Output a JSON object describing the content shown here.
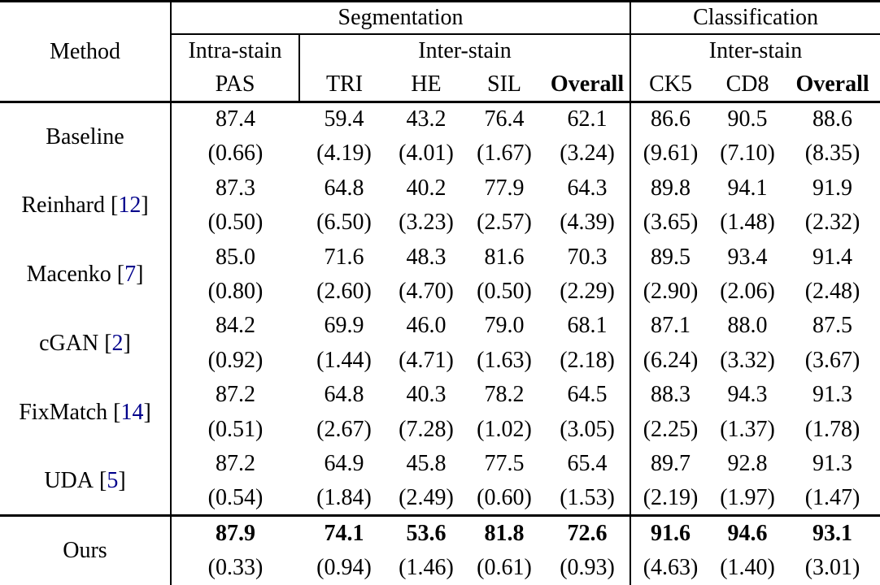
{
  "page": {
    "background": "#ffffff"
  },
  "colors": {
    "text": "#000000",
    "citation": "#00008B",
    "rule": "#000000"
  },
  "table": {
    "cite_open": "[",
    "cite_close": "]",
    "header": {
      "method_label": "Method",
      "seg_label": "Segmentation",
      "cls_label": "Classification",
      "intra_label": "Intra-stain",
      "inter_label": "Inter-stain",
      "columns": [
        "PAS",
        "TRI",
        "HE",
        "SIL",
        "Overall",
        "CK5",
        "CD8",
        "Overall"
      ]
    },
    "rows": [
      {
        "method": "Baseline",
        "ref": "",
        "bold": false,
        "values": [
          "87.4",
          "59.4",
          "43.2",
          "76.4",
          "62.1",
          "86.6",
          "90.5",
          "88.6"
        ],
        "stds": [
          "(0.66)",
          "(4.19)",
          "(4.01)",
          "(1.67)",
          "(3.24)",
          "(9.61)",
          "(7.10)",
          "(8.35)"
        ]
      },
      {
        "method": "Reinhard",
        "ref": "12",
        "bold": false,
        "values": [
          "87.3",
          "64.8",
          "40.2",
          "77.9",
          "64.3",
          "89.8",
          "94.1",
          "91.9"
        ],
        "stds": [
          "(0.50)",
          "(6.50)",
          "(3.23)",
          "(2.57)",
          "(4.39)",
          "(3.65)",
          "(1.48)",
          "(2.32)"
        ]
      },
      {
        "method": "Macenko",
        "ref": "7",
        "bold": false,
        "values": [
          "85.0",
          "71.6",
          "48.3",
          "81.6",
          "70.3",
          "89.5",
          "93.4",
          "91.4"
        ],
        "stds": [
          "(0.80)",
          "(2.60)",
          "(4.70)",
          "(0.50)",
          "(2.29)",
          "(2.90)",
          "(2.06)",
          "(2.48)"
        ]
      },
      {
        "method": "cGAN",
        "ref": "2",
        "bold": false,
        "values": [
          "84.2",
          "69.9",
          "46.0",
          "79.0",
          "68.1",
          "87.1",
          "88.0",
          "87.5"
        ],
        "stds": [
          "(0.92)",
          "(1.44)",
          "(4.71)",
          "(1.63)",
          "(2.18)",
          "(6.24)",
          "(3.32)",
          "(3.67)"
        ]
      },
      {
        "method": "FixMatch",
        "ref": "14",
        "bold": false,
        "values": [
          "87.2",
          "64.8",
          "40.3",
          "78.2",
          "64.5",
          "88.3",
          "94.3",
          "91.3"
        ],
        "stds": [
          "(0.51)",
          "(2.67)",
          "(7.28)",
          "(1.02)",
          "(3.05)",
          "(2.25)",
          "(1.37)",
          "(1.78)"
        ]
      },
      {
        "method": "UDA",
        "ref": "5",
        "bold": false,
        "values": [
          "87.2",
          "64.9",
          "45.8",
          "77.5",
          "65.4",
          "89.7",
          "92.8",
          "91.3"
        ],
        "stds": [
          "(0.54)",
          "(1.84)",
          "(2.49)",
          "(0.60)",
          "(1.53)",
          "(2.19)",
          "(1.97)",
          "(1.47)"
        ]
      },
      {
        "method": "Ours",
        "ref": "",
        "bold": true,
        "values": [
          "87.9",
          "74.1",
          "53.6",
          "81.8",
          "72.6",
          "91.6",
          "94.6",
          "93.1"
        ],
        "stds": [
          "(0.33)",
          "(0.94)",
          "(1.46)",
          "(0.61)",
          "(0.93)",
          "(4.63)",
          "(1.40)",
          "(3.01)"
        ]
      }
    ]
  }
}
